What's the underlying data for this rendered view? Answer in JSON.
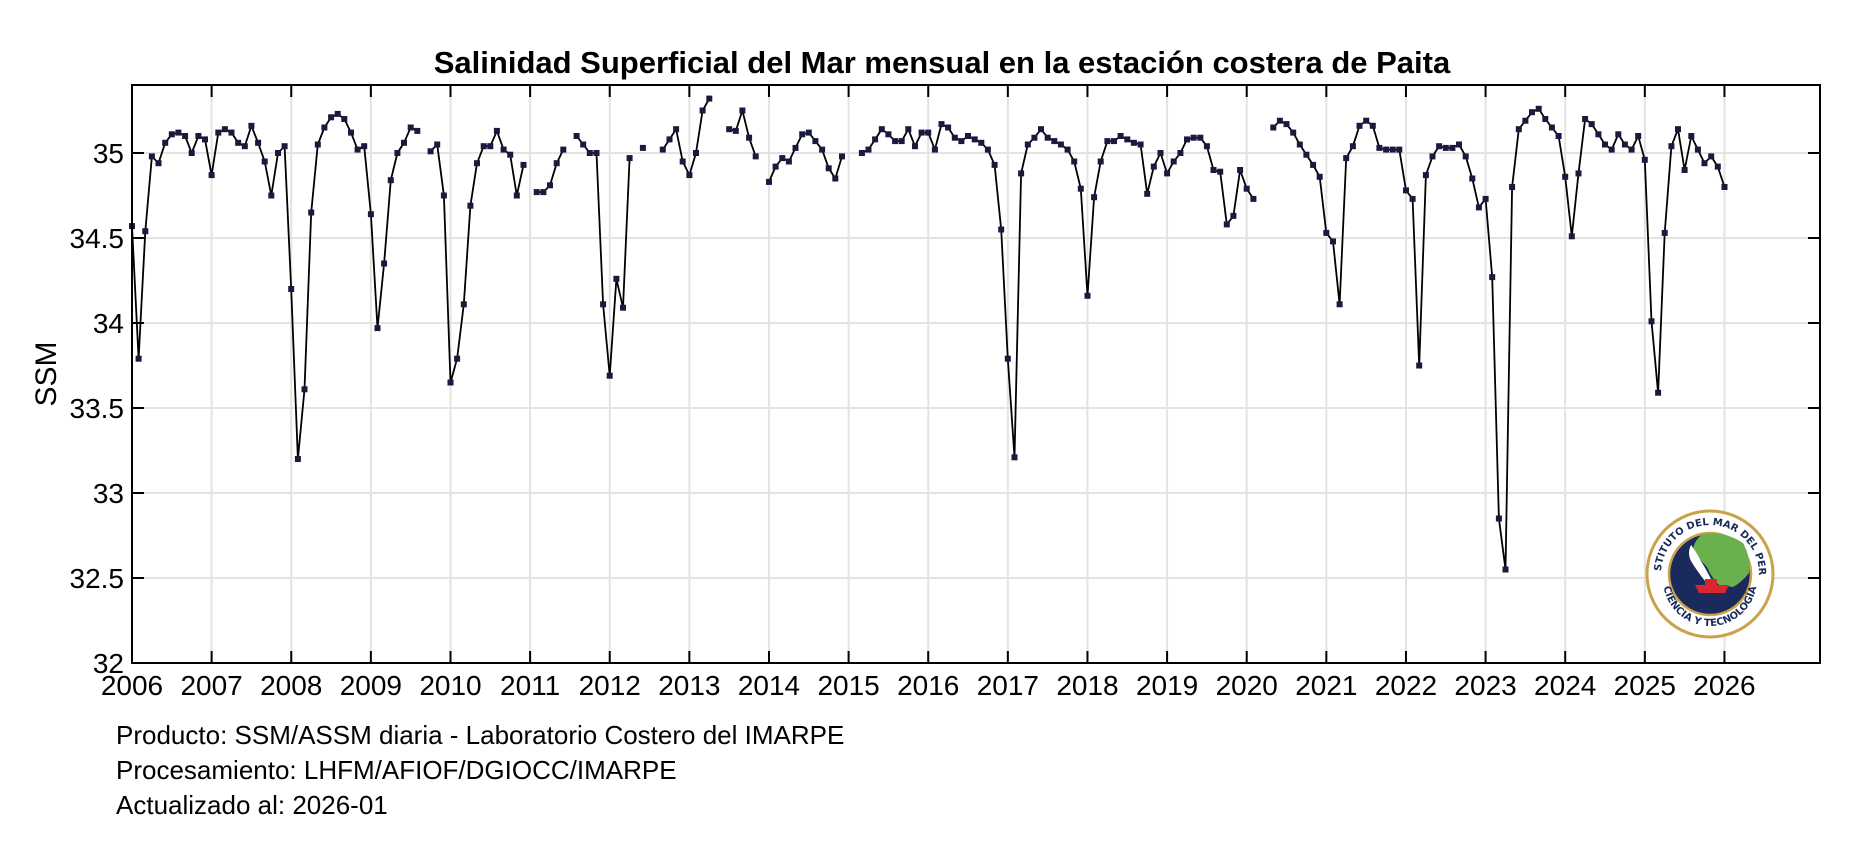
{
  "chart_data": {
    "type": "line",
    "title": "Salinidad Superficial del Mar mensual en la estación costera de Paita",
    "xlabel": "",
    "ylabel": "SSM",
    "xlim": [
      2006,
      2027.2
    ],
    "ylim": [
      32,
      35.4
    ],
    "x_ticks": [
      "2006",
      "2007",
      "2008",
      "2009",
      "2010",
      "2011",
      "2012",
      "2013",
      "2014",
      "2015",
      "2016",
      "2017",
      "2018",
      "2019",
      "2020",
      "2021",
      "2022",
      "2023",
      "2024",
      "2025",
      "2026"
    ],
    "y_ticks": [
      "32",
      "32.5",
      "33",
      "33.5",
      "34",
      "34.5",
      "35"
    ],
    "grid": true,
    "line_color": "#000000",
    "marker_color": "#1a1a3e",
    "start_year": 2006,
    "series": [
      {
        "values": [
          34.57,
          33.79,
          34.54,
          34.98,
          34.94,
          35.06,
          35.11,
          35.12,
          35.1,
          35.0,
          35.1,
          35.08,
          34.87,
          35.12,
          35.14,
          35.12,
          35.06,
          35.04,
          35.16,
          35.06,
          34.95,
          34.75,
          35.0,
          35.04,
          34.2,
          33.2,
          33.61,
          34.65,
          35.05,
          35.15,
          35.21,
          35.23,
          35.2,
          35.12,
          35.02,
          35.04,
          34.64,
          33.97,
          34.35,
          34.84,
          35.0,
          35.06,
          35.15,
          35.13,
          null,
          35.01,
          35.05,
          34.75,
          33.65,
          33.79,
          34.11,
          34.69,
          34.94,
          35.04,
          35.04,
          35.13,
          35.02,
          34.99,
          34.75,
          34.93,
          null,
          34.77,
          34.77,
          34.81,
          34.94,
          35.02,
          null,
          35.1,
          35.05,
          35.0,
          35.0,
          34.11,
          33.69,
          34.26,
          34.09,
          34.97,
          null,
          35.03,
          null,
          null,
          35.02,
          35.08,
          35.14,
          34.95,
          34.87,
          35.0,
          35.25,
          35.32,
          null,
          null,
          35.14,
          35.13,
          35.25,
          35.09,
          34.98,
          null,
          34.83,
          34.92,
          34.97,
          34.95,
          35.03,
          35.11,
          35.12,
          35.07,
          35.02,
          34.91,
          34.85,
          34.98,
          null,
          null,
          35.0,
          35.02,
          35.08,
          35.14,
          35.11,
          35.07,
          35.07,
          35.14,
          35.04,
          35.12,
          35.12,
          35.02,
          35.17,
          35.15,
          35.09,
          35.07,
          35.1,
          35.08,
          35.06,
          35.02,
          34.93,
          34.55,
          33.79,
          33.21,
          34.88,
          35.05,
          35.09,
          35.14,
          35.09,
          35.07,
          35.05,
          35.02,
          34.95,
          34.79,
          34.16,
          34.74,
          34.95,
          35.07,
          35.07,
          35.1,
          35.08,
          35.06,
          35.05,
          34.76,
          34.92,
          35.0,
          34.88,
          34.95,
          35.0,
          35.08,
          35.09,
          35.09,
          35.04,
          34.9,
          34.89,
          34.58,
          34.63,
          34.9,
          34.79,
          34.73,
          null,
          null,
          35.15,
          35.19,
          35.17,
          35.12,
          35.05,
          34.99,
          34.93,
          34.86,
          34.53,
          34.48,
          34.11,
          34.97,
          35.04,
          35.16,
          35.19,
          35.16,
          35.03,
          35.02,
          35.02,
          35.02,
          34.78,
          34.73,
          33.75,
          34.87,
          34.98,
          35.04,
          35.03,
          35.03,
          35.05,
          34.98,
          34.85,
          34.68,
          34.73,
          34.27,
          32.85,
          32.55,
          34.8,
          35.14,
          35.19,
          35.24,
          35.26,
          35.2,
          35.15,
          35.1,
          34.86,
          34.51,
          34.88,
          35.2,
          35.17,
          35.11,
          35.05,
          35.02,
          35.11,
          35.05,
          35.02,
          35.1,
          34.96,
          34.01,
          33.59,
          34.53,
          35.04,
          35.14,
          34.9,
          35.1,
          35.02,
          34.94,
          34.98,
          34.92,
          34.8
        ]
      }
    ]
  },
  "footer": {
    "producto": "Producto: SSM/ASSM diaria - Laboratorio Costero del IMARPE",
    "procesamiento": "Procesamiento: LHFM/AFIOF/DGIOCC/IMARPE",
    "actualizado": "Actualizado al: 2026-01"
  },
  "logo": {
    "icon": "imarpe-seal-icon",
    "text_top": "INSTITUTO DEL MAR DEL PERÚ",
    "text_bottom": "CIENCIA Y TECNOLOGÍA",
    "colors": {
      "ring": "#c9a24a",
      "navy": "#1b2a5c",
      "green": "#6ab04c",
      "red": "#d9262c"
    }
  }
}
